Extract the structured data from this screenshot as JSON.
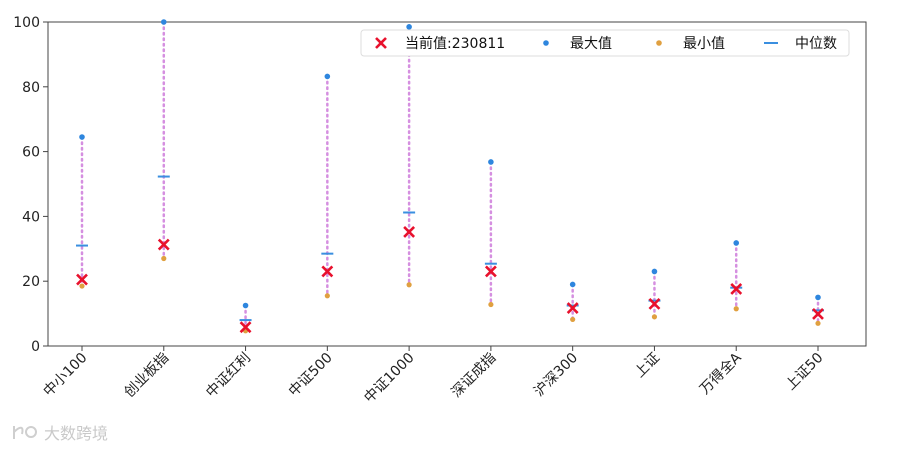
{
  "chart_data": {
    "type": "scatter",
    "title": "",
    "xlabel": "",
    "ylabel": "",
    "ylim": [
      0,
      100
    ],
    "yticks": [
      0,
      20,
      40,
      60,
      80,
      100
    ],
    "grid": false,
    "legend_position": "top-right",
    "categories": [
      "中小100",
      "创业板指",
      "中证红利",
      "中证500",
      "中证1000",
      "深证成指",
      "沪深300",
      "上证",
      "万得全A",
      "上证50"
    ],
    "series": [
      {
        "name": "当前值:230811",
        "marker": "x",
        "color": "#e8112d",
        "values": [
          20.5,
          31.3,
          5.8,
          23.0,
          35.2,
          23.0,
          11.7,
          13.0,
          17.6,
          9.9
        ]
      },
      {
        "name": "最大值",
        "marker": "dot",
        "color": "#2e86de",
        "values": [
          64.5,
          100,
          12.5,
          83.2,
          98.5,
          56.8,
          19.0,
          23.0,
          31.8,
          15.0
        ]
      },
      {
        "name": "最小值",
        "marker": "dot",
        "color": "#e0a040",
        "values": [
          18.5,
          27.0,
          4.7,
          15.5,
          18.9,
          12.8,
          8.2,
          9.0,
          11.5,
          7.0
        ]
      },
      {
        "name": "中位数",
        "marker": "dash",
        "color": "#3a8fe0",
        "values": [
          31.0,
          52.3,
          8.0,
          28.5,
          41.2,
          25.4,
          12.5,
          14.0,
          18.0,
          11.0
        ]
      }
    ],
    "range_line_color": "#d58fe0"
  },
  "watermark": {
    "text": "大数跨境"
  }
}
